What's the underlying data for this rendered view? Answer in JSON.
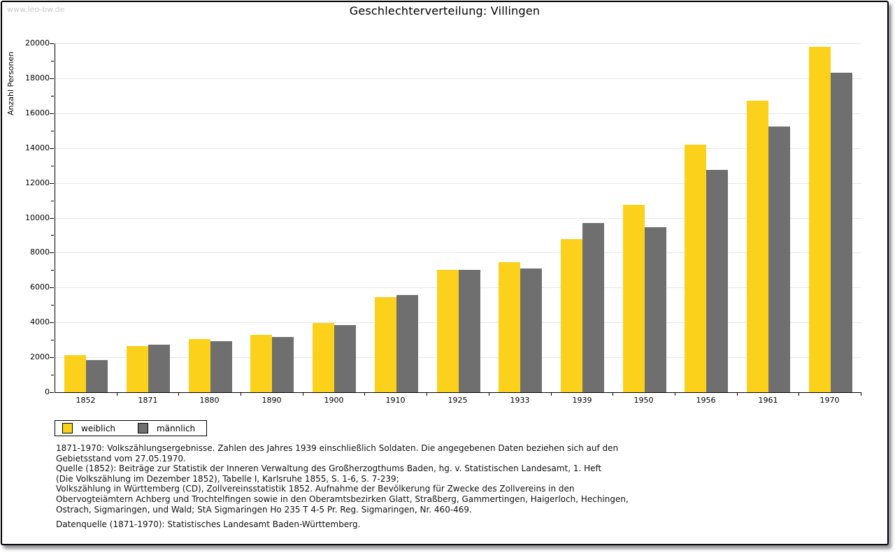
{
  "watermark": "www.leo-bw.de",
  "header": {
    "title": "Geschlechterverteilung: Villingen"
  },
  "chart_data": {
    "type": "bar",
    "title": "Geschlechterverteilung: Villingen",
    "xlabel": "",
    "ylabel": "Anzahl Personen",
    "categories": [
      "1852",
      "1871",
      "1880",
      "1890",
      "1900",
      "1910",
      "1925",
      "1933",
      "1939",
      "1950",
      "1956",
      "1961",
      "1970"
    ],
    "series": [
      {
        "name": "weiblich",
        "color": "#FCD11B",
        "values": [
          2130,
          2650,
          3060,
          3290,
          3970,
          5440,
          7000,
          7460,
          8770,
          10760,
          14200,
          16710,
          19800
        ]
      },
      {
        "name": "männlich",
        "color": "#6F6F6F",
        "values": [
          1845,
          2740,
          2910,
          3160,
          3860,
          5570,
          7030,
          7090,
          9680,
          9440,
          12760,
          15250,
          18320
        ]
      }
    ],
    "ylim": [
      0,
      20000
    ],
    "ytick_step": 2000,
    "yminor_step": 1000,
    "grid": true,
    "legend_position": "bottom-left"
  },
  "footnotes": {
    "lines": [
      "1871-1970: Volkszählungsergebnisse. Zahlen des Jahres 1939 einschließlich Soldaten. Die angegebenen Daten beziehen sich auf den",
      "Gebietsstand vom 27.05.1970.",
      "Quelle (1852): Beiträge zur Statistik der Inneren Verwaltung des Großherzogthums Baden, hg. v. Statistischen Landesamt, 1. Heft",
      "(Die Volkszählung im Dezember 1852), Tabelle I, Karlsruhe 1855, S. 1-6, S. 7-239;",
      "Volkszählung in Württemberg (CD), Zollvereinsstatistik 1852. Aufnahme der Bevölkerung für Zwecke des Zollvereins in den",
      "Obervogteiämtern Achberg und Trochtelfingen sowie in den Oberamtsbezirken Glatt, Straßberg, Gammertingen, Haigerloch, Hechingen,",
      "Ostrach, Sigmaringen, und Wald; StA Sigmaringen Ho 235 T 4-5 Pr. Reg. Sigmaringen, Nr. 460-469."
    ],
    "datasource": "Datenquelle (1871-1970): Statistisches Landesamt Baden-Württemberg."
  },
  "colors": {
    "female_bar": "#FCD11B",
    "male_bar": "#6F6F6F",
    "grid_line": "#E7E7E7",
    "axis": "#000000",
    "watermark_text": "#C9C9C9"
  }
}
